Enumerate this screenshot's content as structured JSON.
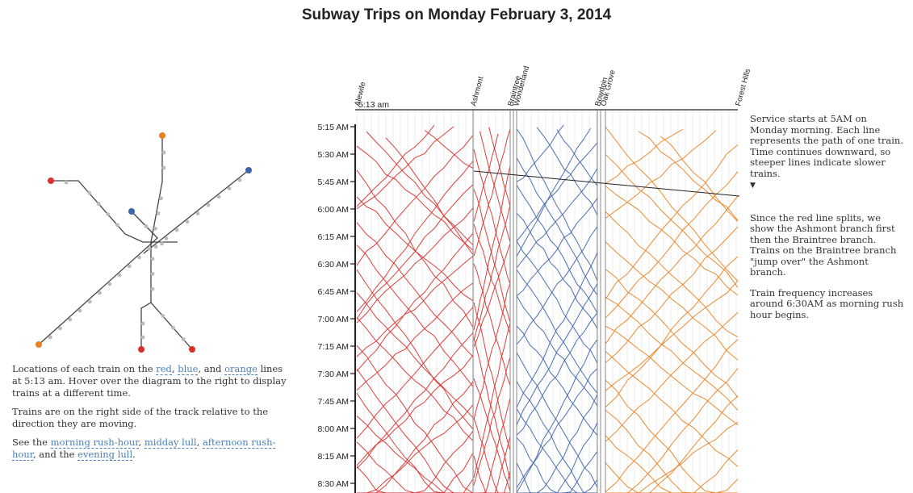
{
  "page": {
    "title": "Subway Trips on Monday February 3, 2014"
  },
  "left_panel": {
    "p1_before": "Locations of each train on the ",
    "red": "red",
    "comma1": ", ",
    "blue": "blue",
    "and1": ", and ",
    "orange": "orange",
    "p1_after": " lines at 5:13 am. Hover over the diagram to the right to display trains at a different time.",
    "p2": "Trains are on the right side of the track relative to the direction they are moving.",
    "p3_see": "See the ",
    "morning": "morning rush-hour",
    "comma2": ", ",
    "midday": "midday lull",
    "comma3": ", ",
    "afternoon": "afternoon rush-hour",
    "and2": ", and the ",
    "evening": "evening lull",
    "period": "."
  },
  "chart_data": {
    "type": "line",
    "title": "Subway Trips on Monday February 3, 2014",
    "current_time": "5:13 am",
    "y_ticks": [
      "5:15 AM",
      "5:30 AM",
      "5:45 AM",
      "6:00 AM",
      "6:15 AM",
      "6:30 AM",
      "6:45 AM",
      "7:00 AM",
      "7:15 AM",
      "7:30 AM",
      "7:45 AM",
      "8:00 AM",
      "8:15 AM",
      "8:30 AM"
    ],
    "stations": [
      "Alewife",
      "Ashmont",
      "Braintree",
      "Wonderland",
      "Bowdoin",
      "Oak Grove",
      "Forest Hills"
    ],
    "lines": [
      {
        "name": "red",
        "color": "#d9302c"
      },
      {
        "name": "blue",
        "color": "#3c64ad"
      },
      {
        "name": "orange",
        "color": "#ea8120"
      }
    ]
  },
  "notes": {
    "n1": "Service starts at 5AM on Monday morning. Each line represents the path of one train. Time continues downward, so steeper lines indicate slower trains.",
    "caret": "▼",
    "n2": "Since the red line splits, we show the Ashmont branch first then the Braintree branch. Trains on the Braintree branch \"jump over\" the Ashmont branch.",
    "n3": "Train frequency increases around 6:30AM as morning rush hour begins."
  }
}
